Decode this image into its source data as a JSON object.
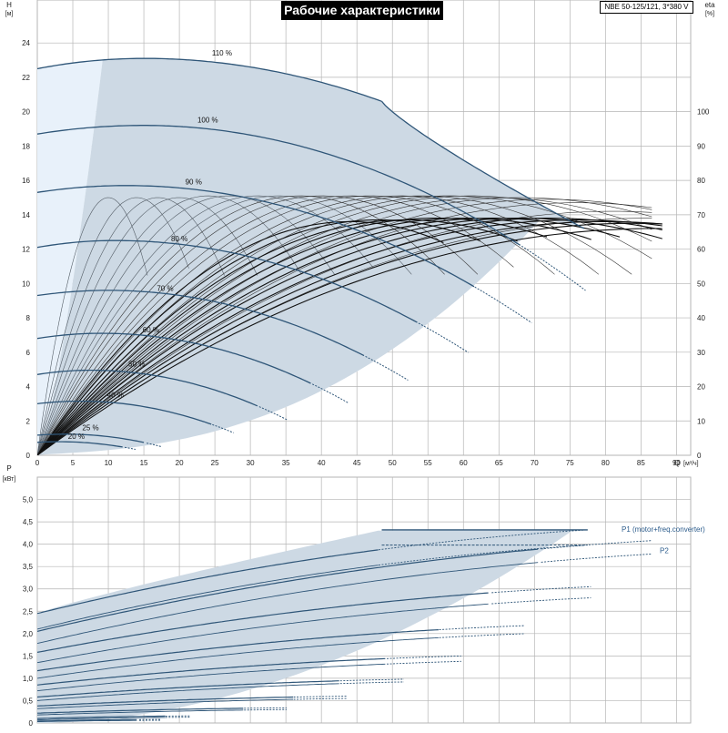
{
  "title": "Рабочие характеристики",
  "model": "NBE 50-125/121, 3*380 V",
  "colors": {
    "frame": "#b5b5b5",
    "curve": "#2f5678",
    "thin_curve": "#545d66",
    "eta_curve": "#111111",
    "area_fill": "#cdd9e4",
    "light_fill": "#e8f1fa",
    "text": "#222222",
    "label_blue": "#2c5c8c"
  },
  "chart_data": [
    {
      "type": "line",
      "title": "",
      "xlabel": "Q [м³/ч]",
      "ylabel": "H [м]",
      "y2label": "eta [%]",
      "xlim": [
        0,
        92
      ],
      "ylim": [
        0,
        26.5
      ],
      "y2lim": [
        0,
        132.5
      ],
      "xticks": [
        "0",
        "5",
        "10",
        "15",
        "20",
        "25",
        "30",
        "35",
        "40",
        "45",
        "50",
        "55",
        "60",
        "65",
        "70",
        "75",
        "80",
        "85",
        "90"
      ],
      "xlabel_unit": "Q",
      "xlabel_unit_suffix": "[м³/ч]",
      "yticks": [
        "0",
        "2",
        "4",
        "6",
        "8",
        "10",
        "12",
        "14",
        "16",
        "18",
        "20",
        "22",
        "24"
      ],
      "y2ticks": [
        "0",
        "10",
        "20",
        "30",
        "40",
        "50",
        "60",
        "70",
        "80",
        "90",
        "100"
      ],
      "grid": true,
      "speed_curves": [
        {
          "name": "110 %",
          "H0": 22.5,
          "peak_q": 15.0,
          "peak_h": 23.1,
          "q_end": 48.5,
          "h_end": 20.6,
          "label_q": 26,
          "label_h": 23.1
        },
        {
          "name": "100 %",
          "H0": 18.7,
          "peak_q": 15.0,
          "peak_h": 19.2,
          "q_end": 77.5,
          "h_end": 9.5,
          "label_q": 24,
          "label_h": 19.2
        },
        {
          "name": "90 %",
          "H0": 15.3,
          "peak_q": 12.5,
          "peak_h": 15.7,
          "q_end": 70.0,
          "h_end": 7.6,
          "label_q": 22,
          "label_h": 15.6
        },
        {
          "name": "80 %",
          "H0": 12.1,
          "peak_q": 11.0,
          "peak_h": 12.5,
          "q_end": 61.0,
          "h_end": 5.9,
          "label_q": 20,
          "label_h": 12.3
        },
        {
          "name": "70 %",
          "H0": 9.3,
          "peak_q": 10.0,
          "peak_h": 9.6,
          "q_end": 52.5,
          "h_end": 4.3,
          "label_q": 18,
          "label_h": 9.4
        },
        {
          "name": "60 %",
          "H0": 6.8,
          "peak_q": 9.0,
          "peak_h": 7.1,
          "q_end": 44.0,
          "h_end": 3.0,
          "label_q": 16,
          "label_h": 7.0
        },
        {
          "name": "50 %",
          "H0": 4.7,
          "peak_q": 7.5,
          "peak_h": 4.95,
          "q_end": 35.5,
          "h_end": 2.0,
          "label_q": 14,
          "label_h": 5.0
        },
        {
          "name": "40 %",
          "H0": 3.0,
          "peak_q": 6.0,
          "peak_h": 3.15,
          "q_end": 28.0,
          "h_end": 1.25,
          "label_q": 11,
          "label_h": 3.2
        },
        {
          "name": "25 %",
          "H0": 1.17,
          "peak_q": 4.0,
          "peak_h": 1.23,
          "q_end": 17.5,
          "h_end": 0.5,
          "label_q": 7.5,
          "label_h": 1.3
        },
        {
          "name": "20 %",
          "H0": 0.75,
          "peak_q": 3.0,
          "peak_h": 0.79,
          "q_end": 14.0,
          "h_end": 0.33,
          "label_q": 5.5,
          "label_h": 0.8
        }
      ],
      "eta_curves_thin_peak_q": [
        10,
        14,
        17,
        20,
        24,
        27,
        31,
        34,
        37,
        40,
        44,
        47,
        51,
        54,
        58,
        61,
        64,
        68,
        72,
        76,
        81,
        86
      ],
      "eta_curves_thin_peak_eta": [
        75,
        75,
        75,
        75,
        75.5,
        75.5,
        75.5,
        75.5,
        75.5,
        75.5,
        75.5,
        75.5,
        75.5,
        75.5,
        75.5,
        75.5,
        75,
        75,
        74.5,
        73.5,
        71,
        69
      ],
      "eta_curves_thick_peak_q": [
        44,
        48,
        52,
        56,
        60,
        64,
        68,
        72,
        76,
        80,
        84,
        87
      ],
      "eta_curves_thick_peak_eta": [
        68,
        68.5,
        68.5,
        69,
        69,
        69,
        69,
        69,
        68.5,
        68,
        67.5,
        66
      ],
      "operating_area": "shaded"
    },
    {
      "type": "line",
      "title": "",
      "ylabel": "P [кВт]",
      "ylim": [
        0,
        5.5
      ],
      "yticks": [
        "0",
        "0,5",
        "1,0",
        "1,5",
        "2,0",
        "2,5",
        "3,0",
        "3,5",
        "4,0",
        "4,5",
        "5,0"
      ],
      "grid": true,
      "series": [
        {
          "name": "P1 (motor+freq.converter)",
          "P0": 2.45,
          "P_max": 4.32
        },
        {
          "name": "P2",
          "P0": 2.1,
          "P_max": 3.98
        }
      ],
      "power_curves": [
        {
          "P0": 2.45,
          "P_end": 4.32,
          "q_end": 77.5
        },
        {
          "P0": 2.1,
          "P_end": 3.98,
          "q_end": 77.5
        },
        {
          "P0": 2.05,
          "P_end": 4.08,
          "q_end": 86.5
        },
        {
          "P0": 1.78,
          "P_end": 3.78,
          "q_end": 86.5
        },
        {
          "P0": 1.58,
          "P_end": 3.05,
          "q_end": 78.0
        },
        {
          "P0": 1.35,
          "P_end": 2.8,
          "q_end": 78.0
        },
        {
          "P0": 1.17,
          "P_end": 2.18,
          "q_end": 69.0
        },
        {
          "P0": 1.0,
          "P_end": 2.0,
          "q_end": 69.0
        },
        {
          "P0": 0.85,
          "P_end": 1.5,
          "q_end": 60.0
        },
        {
          "P0": 0.72,
          "P_end": 1.38,
          "q_end": 60.0
        },
        {
          "P0": 0.58,
          "P_end": 0.98,
          "q_end": 52.0
        },
        {
          "P0": 0.5,
          "P_end": 0.92,
          "q_end": 52.0
        },
        {
          "P0": 0.38,
          "P_end": 0.6,
          "q_end": 44.0
        },
        {
          "P0": 0.32,
          "P_end": 0.55,
          "q_end": 44.0
        },
        {
          "P0": 0.22,
          "P_end": 0.34,
          "q_end": 35.5
        },
        {
          "P0": 0.18,
          "P_end": 0.3,
          "q_end": 35.5
        },
        {
          "P0": 0.1,
          "P_end": 0.16,
          "q_end": 22.0
        },
        {
          "P0": 0.07,
          "P_end": 0.13,
          "q_end": 22.0
        },
        {
          "P0": 0.04,
          "P_end": 0.08,
          "q_end": 17.5
        },
        {
          "P0": 0.03,
          "P_end": 0.06,
          "q_end": 17.5
        }
      ]
    }
  ]
}
